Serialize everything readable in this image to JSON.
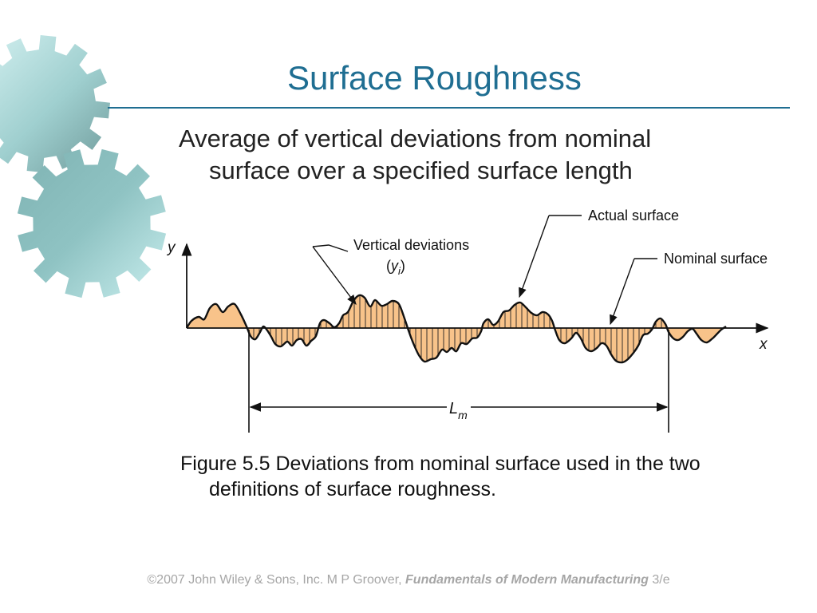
{
  "slide": {
    "title": "Surface Roughness",
    "subtitle_line1": "Average of vertical deviations from nominal",
    "subtitle_line2": "surface over a specified surface length"
  },
  "figure": {
    "axis_y_label": "y",
    "axis_x_label": "x",
    "vertical_deviations_label": "Vertical deviations",
    "yi_label_open": "(",
    "yi_label_y": "y",
    "yi_label_sub": "i",
    "yi_label_close": ")",
    "actual_surface_label": "Actual surface",
    "nominal_surface_label": "Nominal surface",
    "length_label_main": "L",
    "length_label_sub": "m",
    "fill_color": "#f8c38a",
    "line_color": "#111111"
  },
  "caption": {
    "line1": "Figure 5.5  Deviations from nominal surface used in the two",
    "line2": "definitions of surface roughness."
  },
  "footer": {
    "copyright": "©2007 John Wiley & Sons, Inc.  M P Groover, ",
    "book": "Fundamentals of Modern Manufacturing",
    "edition": " 3/e"
  },
  "decor": {
    "gear_colors": [
      "#a9dcdc",
      "#6f9e9e"
    ]
  }
}
